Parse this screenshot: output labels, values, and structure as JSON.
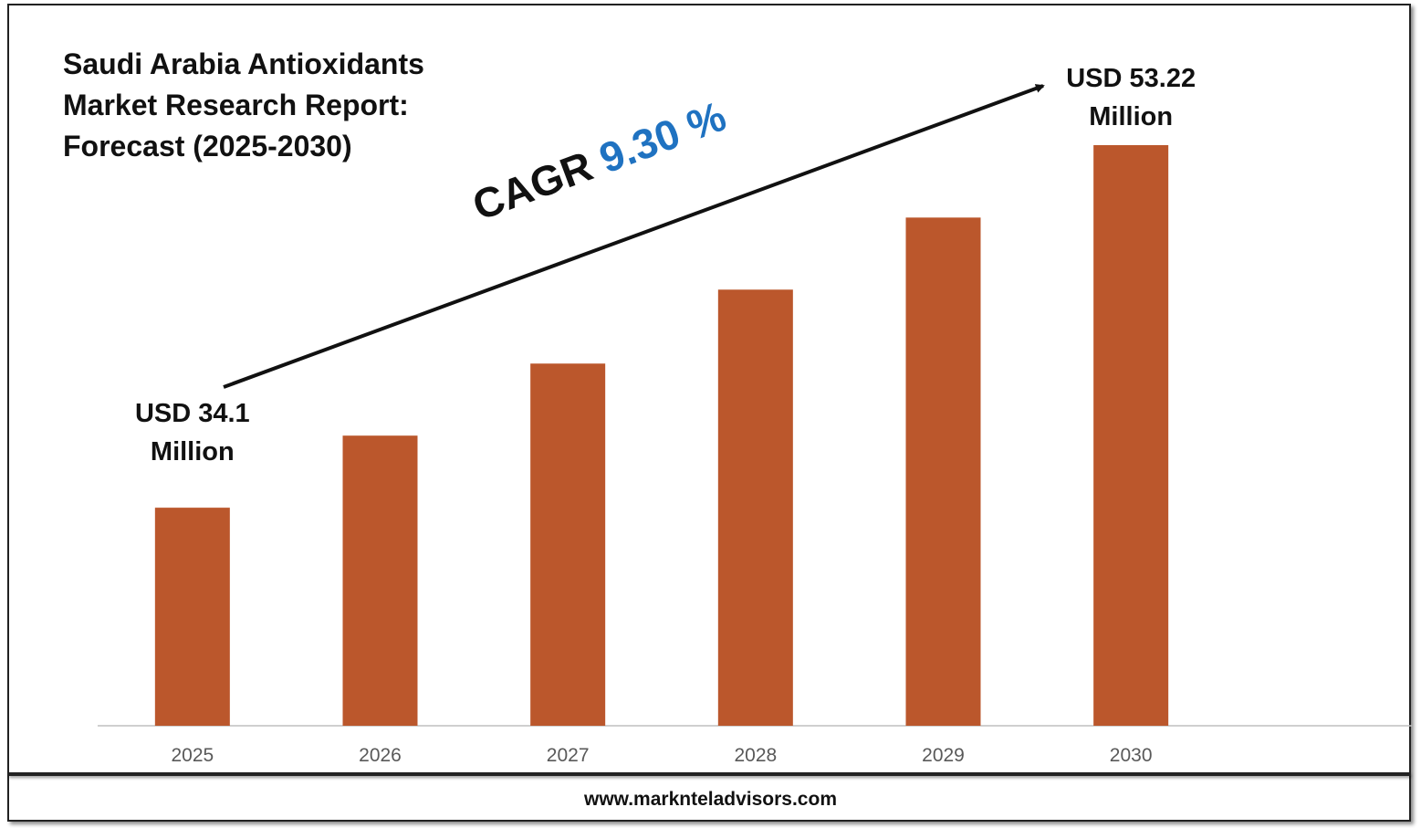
{
  "chart_data": {
    "type": "bar",
    "title": "Saudi Arabia Antioxidants Market Research Report: Forecast (2025-2030)",
    "categories": [
      "2025",
      "2026",
      "2027",
      "2028",
      "2029",
      "2030"
    ],
    "values": [
      34.1,
      37.9,
      41.7,
      45.6,
      49.4,
      53.22
    ],
    "value_labels": [
      "USD 34.1 Million",
      null,
      null,
      null,
      null,
      "USD 53.22 Million"
    ],
    "color": "#bb572c",
    "ylim": [
      22.6,
      55
    ],
    "cagr_label": "CAGR",
    "cagr_value": "9.30 %"
  },
  "footer": "www.marknteladvisors.com"
}
